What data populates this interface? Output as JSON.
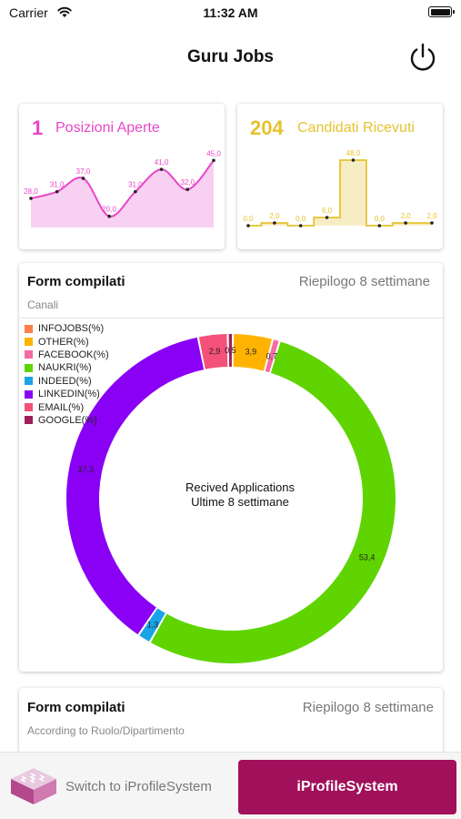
{
  "status_bar": {
    "carrier": "Carrier",
    "time": "11:32 AM"
  },
  "header": {
    "title": "Guru Jobs"
  },
  "kpi_left": {
    "number": "1",
    "label": "Posizioni Aperte",
    "color": "#e945c8",
    "chart_data": {
      "type": "area",
      "values": [
        28,
        31,
        37,
        20,
        31,
        41,
        32,
        45
      ],
      "point_labels": [
        "28,0",
        "31,0",
        "37,0",
        "20,0",
        "31,0",
        "41,0",
        "32,0",
        "45,0"
      ],
      "ylim": [
        15,
        50
      ]
    }
  },
  "kpi_right": {
    "number": "204",
    "label": "Candidati Ricevuti",
    "color": "#e5c32f",
    "chart_data": {
      "type": "area",
      "values": [
        0,
        2,
        0,
        6,
        48,
        0,
        2,
        2
      ],
      "point_labels": [
        "0,0",
        "2,0",
        "0,0",
        "6,0",
        "48,0",
        "0,0",
        "2,0",
        "2,0"
      ],
      "ylim": [
        0,
        52
      ]
    }
  },
  "donut_card": {
    "title": "Form compilati",
    "summary": "Riepilogo 8 settimane",
    "subtitle": "Canali",
    "center_line1": "Recived Applications",
    "center_line2": "Ultime 8 settimane",
    "chart_data": {
      "type": "pie",
      "legend_position": "top-left",
      "slices": [
        {
          "label": "INFOJOBS(%)",
          "value": 0.0,
          "color": "#ff7f4a"
        },
        {
          "label": "OTHER(%)",
          "value": 3.9,
          "color": "#ffb300",
          "text": "3,9"
        },
        {
          "label": "FACEBOOK(%)",
          "value": 0.7,
          "color": "#f56ba3",
          "text": "0,7"
        },
        {
          "label": "NAUKRI(%)",
          "value": 53.4,
          "color": "#5fd400",
          "text": "53,4"
        },
        {
          "label": "INDEED(%)",
          "value": 1.3,
          "color": "#1aa4e8",
          "text": "1,3"
        },
        {
          "label": "LINKEDIN(%)",
          "value": 37.3,
          "color": "#8a00f5",
          "text": "37,3"
        },
        {
          "label": "EMAIL(%)",
          "value": 2.9,
          "color": "#f3507a",
          "text": "2,9"
        },
        {
          "label": "GOOGLE(%)",
          "value": 0.5,
          "color": "#a0205a",
          "text": "0,5"
        }
      ]
    }
  },
  "bottom_card": {
    "title": "Form compilati",
    "summary": "Riepilogo 8 settimane",
    "subtitle": "According to Ruolo/Dipartimento"
  },
  "footer": {
    "switch_label": "Switch to iProfileSystem",
    "primary_label": "iProfileSystem",
    "primary_color": "#a0105b"
  }
}
